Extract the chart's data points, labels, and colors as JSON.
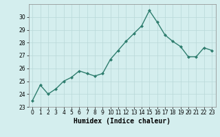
{
  "x": [
    0,
    1,
    2,
    3,
    4,
    5,
    6,
    7,
    8,
    9,
    10,
    11,
    12,
    13,
    14,
    15,
    16,
    17,
    18,
    19,
    20,
    21,
    22,
    23
  ],
  "y": [
    23.5,
    24.7,
    24.0,
    24.4,
    25.0,
    25.3,
    25.8,
    25.6,
    25.4,
    25.6,
    26.7,
    27.4,
    28.1,
    28.7,
    29.3,
    30.5,
    29.6,
    28.6,
    28.1,
    27.7,
    26.9,
    26.9,
    27.6,
    27.4
  ],
  "line_color": "#2e7d6e",
  "marker": "D",
  "marker_size": 2,
  "line_width": 1.0,
  "background_color": "#d4eeee",
  "grid_color": "#b8d8d8",
  "xlabel": "Humidex (Indice chaleur)",
  "ylim": [
    23,
    31
  ],
  "xlim": [
    -0.5,
    23.5
  ],
  "yticks": [
    23,
    24,
    25,
    26,
    27,
    28,
    29,
    30
  ],
  "xticks": [
    0,
    1,
    2,
    3,
    4,
    5,
    6,
    7,
    8,
    9,
    10,
    11,
    12,
    13,
    14,
    15,
    16,
    17,
    18,
    19,
    20,
    21,
    22,
    23
  ],
  "tick_label_fontsize": 5.5,
  "xlabel_fontsize": 7
}
